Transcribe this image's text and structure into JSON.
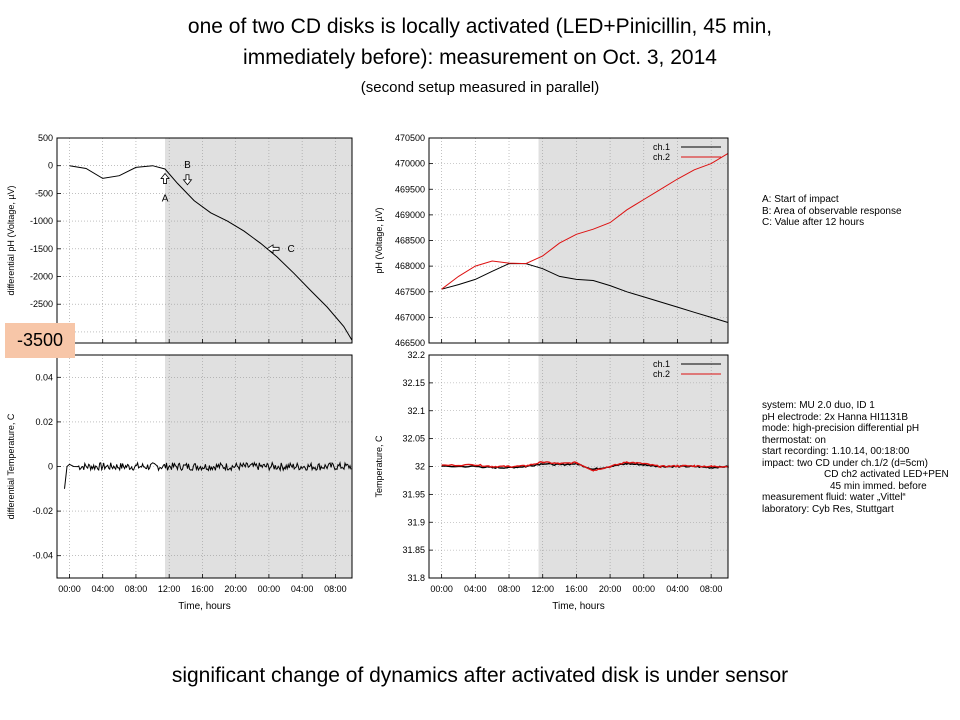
{
  "title": {
    "line1": "one of two CD disks is locally activated (LED+Pinicillin, 45 min,",
    "line2": "immediately before): measurement on Oct. 3, 2014",
    "line3": "(second setup measured in parallel)"
  },
  "caption": "significant change of dynamics after activated disk is under sensor",
  "highlight_label": "-3500",
  "impact_legend": [
    "A: Start of impact",
    "B: Area of observable response",
    "C: Value after 12 hours"
  ],
  "setup_info": [
    "system: MU 2.0 duo, ID 1",
    "pH electrode: 2x Hanna HI1131B",
    "mode: high-precision differential pH",
    "thermostat: on",
    "start recording: 1.10.14, 00:18:00",
    "impact: two CD under  ch.1/2 (d=5cm)",
    "CD ch2 activated LED+PEN",
    "45 min immed. before",
    "measurement fluid: water „Vittel“",
    "laboratory: Cyb Res, Stuttgart"
  ],
  "colors": {
    "ch1": "#000000",
    "ch2": "#dd1111",
    "shade": "#e0e0e0",
    "highlight": "#f7c6a8"
  },
  "chart_data": [
    {
      "type": "line",
      "ylabel": "differential pH (Voltage, µV)",
      "xlabel": "",
      "x_ticks": [
        "00:00",
        "04:00",
        "08:00",
        "12:00",
        "16:00",
        "20:00",
        "00:00",
        "04:00",
        "08:00"
      ],
      "xlim_hours": [
        -1.5,
        34
      ],
      "ylim": [
        -3200,
        500
      ],
      "y_ticks": [
        500,
        0,
        -500,
        -1000,
        -1500,
        -2000,
        -2500,
        -3000
      ],
      "shaded_from_hours": 11.5,
      "annotations": [
        {
          "label": "A",
          "x_hours": 11.5,
          "y": -250
        },
        {
          "label": "B",
          "x_hours": 14.2,
          "y": -200
        },
        {
          "label": "C",
          "x_hours": 24.5,
          "y": -1500
        }
      ],
      "series": [
        {
          "x": [
            0,
            2,
            4,
            6,
            8,
            10,
            11.5,
            13,
            15,
            17,
            19,
            21,
            23,
            25,
            27,
            29,
            31,
            33,
            34
          ],
          "y": [
            0,
            -50,
            -230,
            -180,
            -30,
            0,
            -60,
            -320,
            -630,
            -850,
            -1000,
            -1180,
            -1400,
            -1650,
            -1940,
            -2250,
            -2550,
            -2900,
            -3150
          ]
        }
      ]
    },
    {
      "type": "line",
      "ylabel": "pH (Voltage, µV)",
      "xlabel": "",
      "x_ticks": [
        "00:00",
        "04:00",
        "08:00",
        "12:00",
        "16:00",
        "20:00",
        "00:00",
        "04:00",
        "08:00"
      ],
      "xlim_hours": [
        -1.5,
        34
      ],
      "ylim": [
        466500,
        470500
      ],
      "y_ticks": [
        470500,
        470000,
        469500,
        469000,
        468500,
        468000,
        467500,
        467000,
        466500
      ],
      "shaded_from_hours": 11.5,
      "legend": [
        "ch.1",
        "ch.2"
      ],
      "series": [
        {
          "name": "ch.1",
          "x": [
            0,
            2,
            4,
            6,
            8,
            10,
            12,
            14,
            16,
            18,
            20,
            22,
            24,
            26,
            28,
            30,
            32,
            34
          ],
          "y": [
            467550,
            467640,
            467740,
            467900,
            468050,
            468050,
            467950,
            467800,
            467740,
            467720,
            467620,
            467500,
            467400,
            467300,
            467200,
            467100,
            467000,
            466900
          ]
        },
        {
          "name": "ch.2",
          "x": [
            0,
            2,
            4,
            6,
            8,
            10,
            12,
            14,
            16,
            18,
            20,
            22,
            24,
            26,
            28,
            30,
            32,
            34
          ],
          "y": [
            467550,
            467800,
            468000,
            468100,
            468060,
            468050,
            468200,
            468450,
            468620,
            468720,
            468850,
            469100,
            469300,
            469500,
            469700,
            469880,
            470000,
            470200
          ]
        }
      ]
    },
    {
      "type": "line",
      "ylabel": "differential Temperature, C",
      "xlabel": "Time, hours",
      "x_ticks": [
        "00:00",
        "04:00",
        "08:00",
        "12:00",
        "16:00",
        "20:00",
        "00:00",
        "04:00",
        "08:00"
      ],
      "xlim_hours": [
        -1.5,
        34
      ],
      "ylim": [
        -0.05,
        0.05
      ],
      "y_ticks": [
        0.04,
        0.02,
        0,
        -0.02,
        -0.04
      ],
      "shaded_from_hours": 11.5,
      "series": [
        {
          "x": [
            -0.6,
            -0.3,
            0,
            0.5,
            1,
            34
          ],
          "y": [
            -0.01,
            0,
            0.001,
            0,
            0,
            0
          ]
        }
      ]
    },
    {
      "type": "line",
      "ylabel": "Temperature, C",
      "xlabel": "Time, hours",
      "x_ticks": [
        "00:00",
        "04:00",
        "08:00",
        "12:00",
        "16:00",
        "20:00",
        "00:00",
        "04:00",
        "08:00"
      ],
      "xlim_hours": [
        -1.5,
        34
      ],
      "ylim": [
        31.8,
        32.2
      ],
      "y_ticks": [
        32.2,
        32.15,
        32.1,
        32.05,
        32,
        31.95,
        31.9,
        31.85,
        31.8
      ],
      "shaded_from_hours": 11.5,
      "legend": [
        "ch.1",
        "ch.2"
      ],
      "series": [
        {
          "name": "ch.1",
          "x": [
            0,
            4,
            6,
            8,
            10,
            12,
            14,
            16,
            18,
            20,
            22,
            24,
            26,
            28,
            30,
            32,
            34
          ],
          "y": [
            32.0,
            32.0,
            31.998,
            31.998,
            32.0,
            32.005,
            32.003,
            32.005,
            31.995,
            32.0,
            32.005,
            32.003,
            32.0,
            32.0,
            32.0,
            31.998,
            32.0
          ]
        },
        {
          "name": "ch.2",
          "x": [
            0,
            4,
            6,
            8,
            10,
            12,
            14,
            16,
            18,
            20,
            22,
            24,
            26,
            28,
            30,
            32,
            34
          ],
          "y": [
            32.002,
            32.003,
            32.0,
            32.0,
            32.001,
            32.008,
            32.005,
            32.007,
            31.993,
            32.0,
            32.008,
            32.005,
            32.0,
            32.001,
            32.001,
            32.0,
            32.0
          ]
        }
      ]
    }
  ]
}
